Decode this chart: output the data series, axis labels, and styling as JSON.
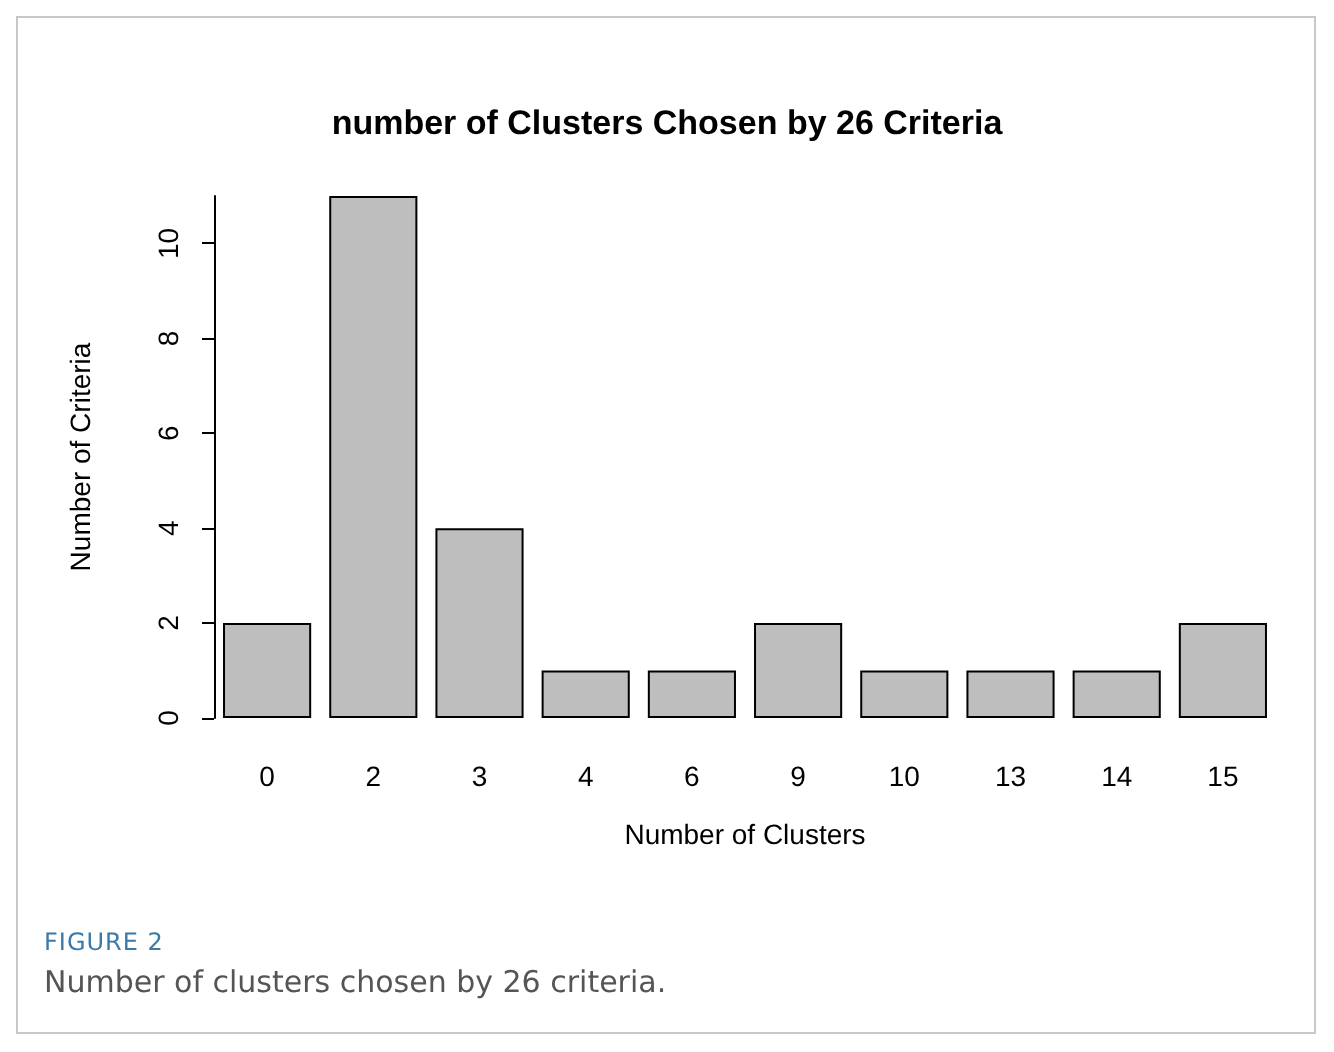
{
  "chart_data": {
    "type": "bar",
    "title": "number of Clusters Chosen by 26 Criteria",
    "xlabel": "Number of Clusters",
    "ylabel": "Number of Criteria",
    "categories": [
      "0",
      "2",
      "3",
      "4",
      "6",
      "9",
      "10",
      "13",
      "14",
      "15"
    ],
    "values": [
      2,
      11,
      4,
      1,
      1,
      2,
      1,
      1,
      1,
      2
    ],
    "color": "#bebebe",
    "ylim": [
      0,
      11
    ],
    "yticks": [
      0,
      2,
      4,
      6,
      8,
      10
    ],
    "grid": false,
    "annotations": [
      "FIGURE 2",
      "Number of clusters chosen by 26 criteria."
    ]
  }
}
